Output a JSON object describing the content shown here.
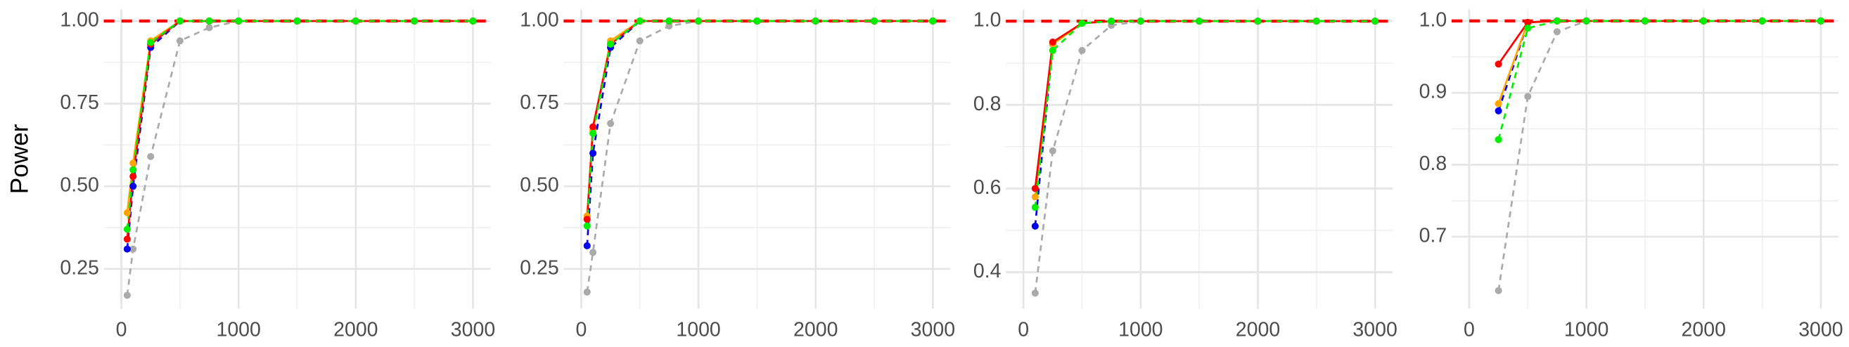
{
  "chart_data": [
    {
      "type": "line",
      "ylabel": "Power",
      "x": [
        50,
        100,
        250,
        500,
        750,
        1000,
        1500,
        2000,
        2500,
        3000
      ],
      "xlim": [
        -150,
        3150
      ],
      "xticks": [
        0,
        1000,
        2000,
        3000
      ],
      "ylim": [
        0.13,
        1.035
      ],
      "yticks": [
        0.25,
        {
          "value": 0.5,
          "label": "0.50"
        },
        0.75,
        {
          "value": 1,
          "label": "1.00"
        }
      ],
      "grid": true,
      "hline": 1,
      "hline_color": "#ff0000",
      "series": [
        {
          "color": "#aaaaaa",
          "dashed": true,
          "values": [
            0.17,
            0.31,
            0.59,
            0.94,
            0.98,
            1,
            1,
            1,
            1,
            1
          ]
        },
        {
          "color": "#0000ee",
          "dashed": true,
          "values": [
            0.31,
            0.5,
            0.92,
            1,
            1,
            1,
            1,
            1,
            1,
            1
          ]
        },
        {
          "color": "#ffa500",
          "dashed": false,
          "values": [
            0.42,
            0.57,
            0.94,
            1,
            1,
            1,
            1,
            1,
            1,
            1
          ]
        },
        {
          "color": "#ff0000",
          "dashed": false,
          "values": [
            0.34,
            0.53,
            0.93,
            1,
            1,
            1,
            1,
            1,
            1,
            1
          ]
        },
        {
          "color": "#00ee00",
          "dashed": true,
          "values": [
            0.37,
            0.55,
            0.935,
            1,
            1,
            1,
            1,
            1,
            1,
            1
          ]
        }
      ]
    },
    {
      "type": "line",
      "x": [
        50,
        100,
        250,
        500,
        750,
        1000,
        1500,
        2000,
        2500,
        3000
      ],
      "xlim": [
        -150,
        3150
      ],
      "xticks": [
        0,
        1000,
        2000,
        3000
      ],
      "ylim": [
        0.13,
        1.035
      ],
      "yticks": [
        0.25,
        {
          "value": 0.5,
          "label": "0.50"
        },
        0.75,
        {
          "value": 1,
          "label": "1.00"
        }
      ],
      "grid": true,
      "hline": 1,
      "hline_color": "#ff0000",
      "series": [
        {
          "color": "#aaaaaa",
          "dashed": true,
          "values": [
            0.18,
            0.3,
            0.69,
            0.94,
            0.985,
            1,
            1,
            1,
            1,
            1
          ]
        },
        {
          "color": "#0000ee",
          "dashed": true,
          "values": [
            0.32,
            0.6,
            0.92,
            1,
            1,
            1,
            1,
            1,
            1,
            1
          ]
        },
        {
          "color": "#ffa500",
          "dashed": false,
          "values": [
            0.41,
            0.67,
            0.94,
            1,
            1,
            1,
            1,
            1,
            1,
            1
          ]
        },
        {
          "color": "#ff0000",
          "dashed": false,
          "values": [
            0.4,
            0.68,
            0.93,
            1,
            1,
            1,
            1,
            1,
            1,
            1
          ]
        },
        {
          "color": "#00ee00",
          "dashed": true,
          "values": [
            0.38,
            0.66,
            0.93,
            1,
            1,
            1,
            1,
            1,
            1,
            1
          ]
        }
      ]
    },
    {
      "type": "line",
      "x": [
        100,
        250,
        500,
        750,
        1000,
        1500,
        2000,
        2500,
        3000
      ],
      "xlim": [
        -150,
        3150
      ],
      "xticks": [
        0,
        1000,
        2000,
        3000
      ],
      "ylim": [
        0.313,
        1.028
      ],
      "yticks": [
        0.4,
        0.6,
        0.8,
        {
          "value": 1,
          "label": "1.0"
        }
      ],
      "grid": true,
      "hline": 1,
      "hline_color": "#ff0000",
      "series": [
        {
          "color": "#aaaaaa",
          "dashed": true,
          "values": [
            0.35,
            0.69,
            0.93,
            0.99,
            1,
            1,
            1,
            1,
            1
          ]
        },
        {
          "color": "#0000ee",
          "dashed": true,
          "values": [
            0.51,
            0.945,
            0.995,
            1,
            1,
            1,
            1,
            1,
            1
          ]
        },
        {
          "color": "#ffa500",
          "dashed": false,
          "values": [
            0.58,
            0.945,
            0.995,
            1,
            1,
            1,
            1,
            1,
            1
          ]
        },
        {
          "color": "#ff0000",
          "dashed": false,
          "values": [
            0.6,
            0.95,
            0.995,
            1,
            1,
            1,
            1,
            1,
            1
          ]
        },
        {
          "color": "#00ee00",
          "dashed": true,
          "values": [
            0.555,
            0.93,
            0.995,
            1,
            1,
            1,
            1,
            1,
            1
          ]
        }
      ]
    },
    {
      "type": "line",
      "x": [
        250,
        500,
        750,
        1000,
        1500,
        2000,
        2500,
        3000
      ],
      "xlim": [
        -150,
        3150
      ],
      "xticks": [
        0,
        1000,
        2000,
        3000
      ],
      "ylim": [
        0.6,
        1.016
      ],
      "yticks": [
        0.7,
        0.8,
        0.9,
        {
          "value": 1,
          "label": "1.0"
        }
      ],
      "grid": true,
      "hline": 1,
      "hline_color": "#ff0000",
      "series": [
        {
          "color": "#aaaaaa",
          "dashed": true,
          "values": [
            0.625,
            0.895,
            0.985,
            1,
            1,
            1,
            1,
            1
          ]
        },
        {
          "color": "#0000ee",
          "dashed": true,
          "values": [
            0.875,
            0.998,
            1,
            1,
            1,
            1,
            1,
            1
          ]
        },
        {
          "color": "#ffa500",
          "dashed": false,
          "values": [
            0.885,
            0.998,
            1,
            1,
            1,
            1,
            1,
            1
          ]
        },
        {
          "color": "#ff0000",
          "dashed": false,
          "values": [
            0.94,
            0.998,
            1,
            1,
            1,
            1,
            1,
            1
          ]
        },
        {
          "color": "#00ee00",
          "dashed": true,
          "values": [
            0.835,
            0.99,
            1,
            1,
            1,
            1,
            1,
            1
          ]
        }
      ]
    }
  ]
}
